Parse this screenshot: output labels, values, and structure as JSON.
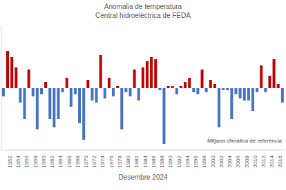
{
  "chart_data": {
    "type": "bar",
    "title": "Anomalia de temperatura",
    "subtitle": "Central hidroelèctrica de FEDA",
    "footer": "Desembre 2024",
    "annotation": "Mitjana climàtica de referència",
    "categories": [
      null,
      "1952",
      null,
      "1954",
      null,
      "1956",
      null,
      "1958",
      null,
      "1960",
      null,
      "1962",
      null,
      "1964",
      null,
      "1966",
      null,
      "1968",
      null,
      "1970",
      null,
      "1972",
      null,
      "1974",
      null,
      "1976",
      null,
      "1978",
      null,
      "1980",
      null,
      "1982",
      null,
      "1984",
      null,
      "1986",
      null,
      "1988",
      null,
      "1990",
      null,
      "1992",
      null,
      "1994",
      null,
      "1996",
      null,
      "1998",
      null,
      "2000",
      null,
      "2002",
      null,
      "2004",
      null,
      "2006",
      null,
      "2008",
      null,
      "2010",
      null,
      "2012",
      null,
      "2014",
      null,
      "2016",
      null
    ],
    "values": [
      -0.4,
      1.8,
      1.5,
      1.0,
      -0.7,
      -1.5,
      0.9,
      -0.4,
      -2.0,
      -0.3,
      0.3,
      -1.5,
      -1.9,
      -1.5,
      -0.2,
      0.5,
      -0.9,
      -0.3,
      -1.7,
      -2.5,
      0.4,
      -0.6,
      -0.7,
      1.6,
      -0.5,
      0.5,
      -0.4,
      0.1,
      -2.0,
      -0.2,
      -0.4,
      0.9,
      -0.6,
      1.0,
      1.3,
      1.5,
      1.4,
      -0.1,
      -2.7,
      0.1,
      0.1,
      -0.3,
      0.1,
      0.3,
      0.5,
      -0.2,
      -0.3,
      0.9,
      -0.2,
      0.4,
      0.2,
      -1.9,
      -0.1,
      -0.1,
      -1.5,
      -0.3,
      -0.5,
      -0.6,
      -0.6,
      -1.1,
      -0.2,
      1.1,
      -0.2,
      0.6,
      1.4,
      0.2,
      -0.7
    ],
    "colors": [
      "#4472c4",
      "#c00000",
      "#c00000",
      "#c00000",
      "#4472c4",
      "#4472c4",
      "#c00000",
      "#4472c4",
      "#4472c4",
      "#4472c4",
      "#c00000",
      "#4472c4",
      "#4472c4",
      "#4472c4",
      "#4472c4",
      "#c00000",
      "#4472c4",
      "#4472c4",
      "#4472c4",
      "#4472c4",
      "#c00000",
      "#4472c4",
      "#4472c4",
      "#c00000",
      "#4472c4",
      "#c00000",
      "#4472c4",
      "#c00000",
      "#4472c4",
      "#4472c4",
      "#4472c4",
      "#c00000",
      "#4472c4",
      "#c00000",
      "#c00000",
      "#c00000",
      "#c00000",
      "#4472c4",
      "#4472c4",
      "#c00000",
      "#c00000",
      "#4472c4",
      "#c00000",
      "#c00000",
      "#c00000",
      "#4472c4",
      "#4472c4",
      "#c00000",
      "#4472c4",
      "#c00000",
      "#c00000",
      "#4472c4",
      "#4472c4",
      "#4472c4",
      "#4472c4",
      "#4472c4",
      "#4472c4",
      "#4472c4",
      "#4472c4",
      "#4472c4",
      "#4472c4",
      "#c00000",
      "#4472c4",
      "#c00000",
      "#c00000",
      "#c00000",
      "#4472c4"
    ],
    "ylim": [
      -3,
      3
    ],
    "tick_labels": "x"
  }
}
